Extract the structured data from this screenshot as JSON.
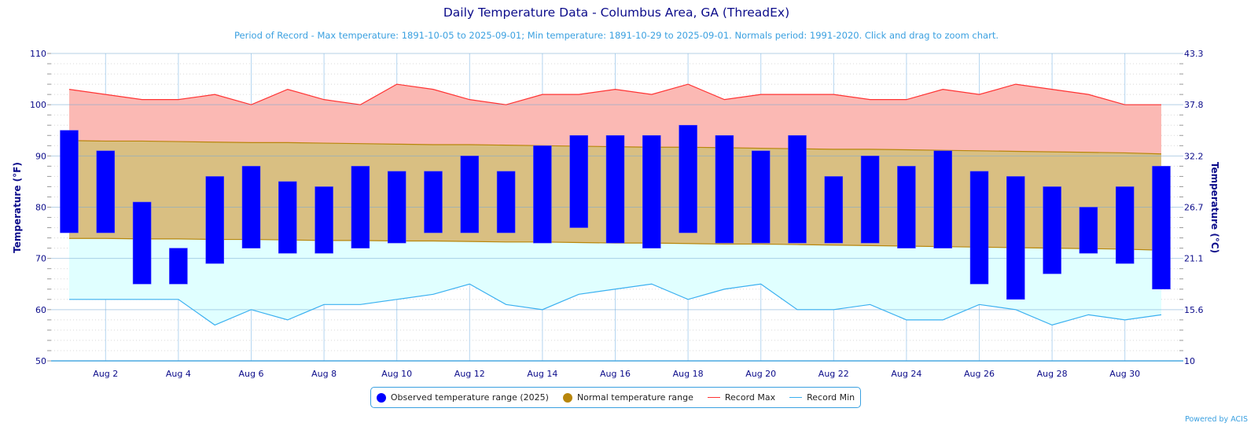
{
  "title": "Daily Temperature Data - Columbus Area, GA (ThreadEx)",
  "subtitle": "Period of Record - Max temperature: 1891-10-05 to 2025-09-01; Min temperature: 1891-10-29 to 2025-09-01. Normals period: 1991-2020. Click and drag to zoom chart.",
  "credit": "Powered by ACIS",
  "colors": {
    "observed": "#0000ff",
    "normal": "#b8860b",
    "normal_fill": "#d9bf82",
    "record_max": "#ff3333",
    "record_max_fill": "#fbb9b4",
    "record_min": "#3ab0f0",
    "record_min_fill": "#e0ffff",
    "axis_text": "#0b0b8a"
  },
  "legend": [
    {
      "label": "Observed temperature range (2025)",
      "kind": "dot",
      "color": "#0000ff"
    },
    {
      "label": "Normal temperature range",
      "kind": "dot",
      "color": "#b8860b"
    },
    {
      "label": "Record Max",
      "kind": "line",
      "color": "#ff3333"
    },
    {
      "label": "Record Min",
      "kind": "line",
      "color": "#3ab0f0"
    }
  ],
  "chart_data": {
    "type": "bar",
    "title": "Daily Temperature Data - Columbus Area, GA (ThreadEx)",
    "ylabel": "Temperature (°F)",
    "ylabel_right": "Temperature (°C)",
    "ylim": [
      50,
      110
    ],
    "yticks": [
      50,
      60,
      70,
      80,
      90,
      100,
      110
    ],
    "yticks_right": [
      "10",
      "15.6",
      "21.1",
      "26.7",
      "32.2",
      "37.8",
      "43.3"
    ],
    "xtick_labels": [
      "Aug 2",
      "Aug 4",
      "Aug 6",
      "Aug 8",
      "Aug 10",
      "Aug 12",
      "Aug 14",
      "Aug 16",
      "Aug 18",
      "Aug 20",
      "Aug 22",
      "Aug 24",
      "Aug 26",
      "Aug 28",
      "Aug 30"
    ],
    "days": [
      1,
      2,
      3,
      4,
      5,
      6,
      7,
      8,
      9,
      10,
      11,
      12,
      13,
      14,
      15,
      16,
      17,
      18,
      19,
      20,
      21,
      22,
      23,
      24,
      25,
      26,
      27,
      28,
      29,
      30,
      31
    ],
    "observed_max": [
      95,
      91,
      81,
      72,
      86,
      88,
      85,
      84,
      88,
      87,
      87,
      90,
      87,
      92,
      94,
      94,
      94,
      96,
      94,
      91,
      94,
      86,
      90,
      88,
      91,
      87,
      86,
      84,
      80,
      84,
      88
    ],
    "observed_min": [
      75,
      75,
      65,
      65,
      69,
      72,
      71,
      71,
      72,
      73,
      75,
      75,
      75,
      73,
      76,
      73,
      72,
      75,
      73,
      73,
      73,
      73,
      73,
      72,
      72,
      65,
      62,
      67,
      71,
      69,
      64
    ],
    "normal_max": [
      93.0,
      92.9,
      92.9,
      92.8,
      92.7,
      92.6,
      92.6,
      92.5,
      92.4,
      92.3,
      92.2,
      92.2,
      92.1,
      92.0,
      91.9,
      91.8,
      91.7,
      91.7,
      91.6,
      91.5,
      91.4,
      91.3,
      91.3,
      91.2,
      91.1,
      91.0,
      90.9,
      90.8,
      90.7,
      90.6,
      90.4
    ],
    "normal_min": [
      73.9,
      73.9,
      73.8,
      73.8,
      73.7,
      73.7,
      73.6,
      73.5,
      73.5,
      73.4,
      73.4,
      73.3,
      73.2,
      73.2,
      73.1,
      73.0,
      73.0,
      72.9,
      72.8,
      72.8,
      72.7,
      72.6,
      72.5,
      72.4,
      72.3,
      72.2,
      72.1,
      72.0,
      71.9,
      71.8,
      71.6
    ],
    "record_max": [
      103,
      102,
      101,
      101,
      102,
      100,
      103,
      101,
      100,
      104,
      103,
      101,
      100,
      102,
      102,
      103,
      102,
      104,
      101,
      102,
      102,
      102,
      101,
      101,
      103,
      102,
      104,
      103,
      102,
      100,
      100
    ],
    "record_min": [
      62,
      62,
      62,
      62,
      57,
      60,
      58,
      61,
      61,
      62,
      63,
      65,
      61,
      60,
      63,
      64,
      65,
      62,
      64,
      65,
      60,
      60,
      61,
      58,
      58,
      61,
      60,
      57,
      59,
      58,
      59
    ],
    "grid": true,
    "legend_position": "bottom-center"
  }
}
